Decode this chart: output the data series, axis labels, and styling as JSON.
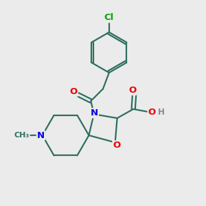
{
  "bg_color": "#ebebeb",
  "bond_color": "#2d6e5e",
  "bond_width": 1.6,
  "atom_colors": {
    "C": "#2d6e5e",
    "N": "#0000ee",
    "O": "#ee0000",
    "Cl": "#00aa00",
    "H": "#888888"
  },
  "font_size": 9.5,
  "figsize": [
    3.0,
    3.0
  ],
  "dpi": 100
}
